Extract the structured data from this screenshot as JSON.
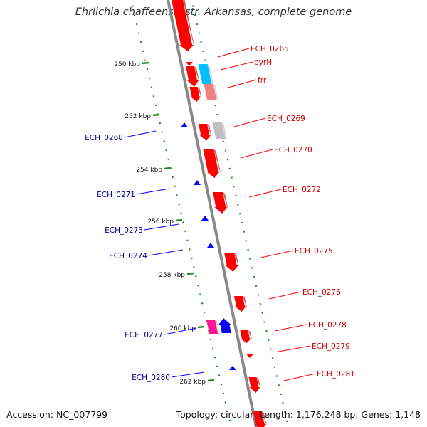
{
  "title": "Ehrlichia chaffeensis str. Arkansas, complete genome",
  "footer": {
    "accession": "Accession: NC_007799",
    "summary": "Topology: circular; Length: 1,176,248 bp; Genes: 1,148"
  },
  "colors": {
    "forward_cds": "#ff0000",
    "reverse_cds": "#0000ff",
    "trna": "#00bfff",
    "rna_other": "#f08080",
    "pseudo": "#c0c0c0",
    "misc": "#ff1493",
    "backbone": "#888888",
    "ruler": "#228b22",
    "forward_label": "#cc0000",
    "reverse_label": "#00008b"
  },
  "ruler_ticks": [
    {
      "label": "250 kbp"
    },
    {
      "label": "252 kbp"
    },
    {
      "label": "254 kbp"
    },
    {
      "label": "256 kbp"
    },
    {
      "label": "258 kbp"
    },
    {
      "label": "260 kbp"
    },
    {
      "label": "262 kbp"
    }
  ],
  "forward_labels": [
    {
      "text": "ECH_0265"
    },
    {
      "text": "pyrH"
    },
    {
      "text": "frr"
    },
    {
      "text": "ECH_0269"
    },
    {
      "text": "ECH_0270"
    },
    {
      "text": "ECH_0272"
    },
    {
      "text": "ECH_0275"
    },
    {
      "text": "ECH_0276"
    },
    {
      "text": "ECH_0278"
    },
    {
      "text": "ECH_0279"
    },
    {
      "text": "ECH_0281"
    }
  ],
  "reverse_labels": [
    {
      "text": "ECH_0268"
    },
    {
      "text": "ECH_0271"
    },
    {
      "text": "ECH_0273"
    },
    {
      "text": "ECH_0274"
    },
    {
      "text": "ECH_0277"
    },
    {
      "text": "ECH_0280"
    }
  ]
}
